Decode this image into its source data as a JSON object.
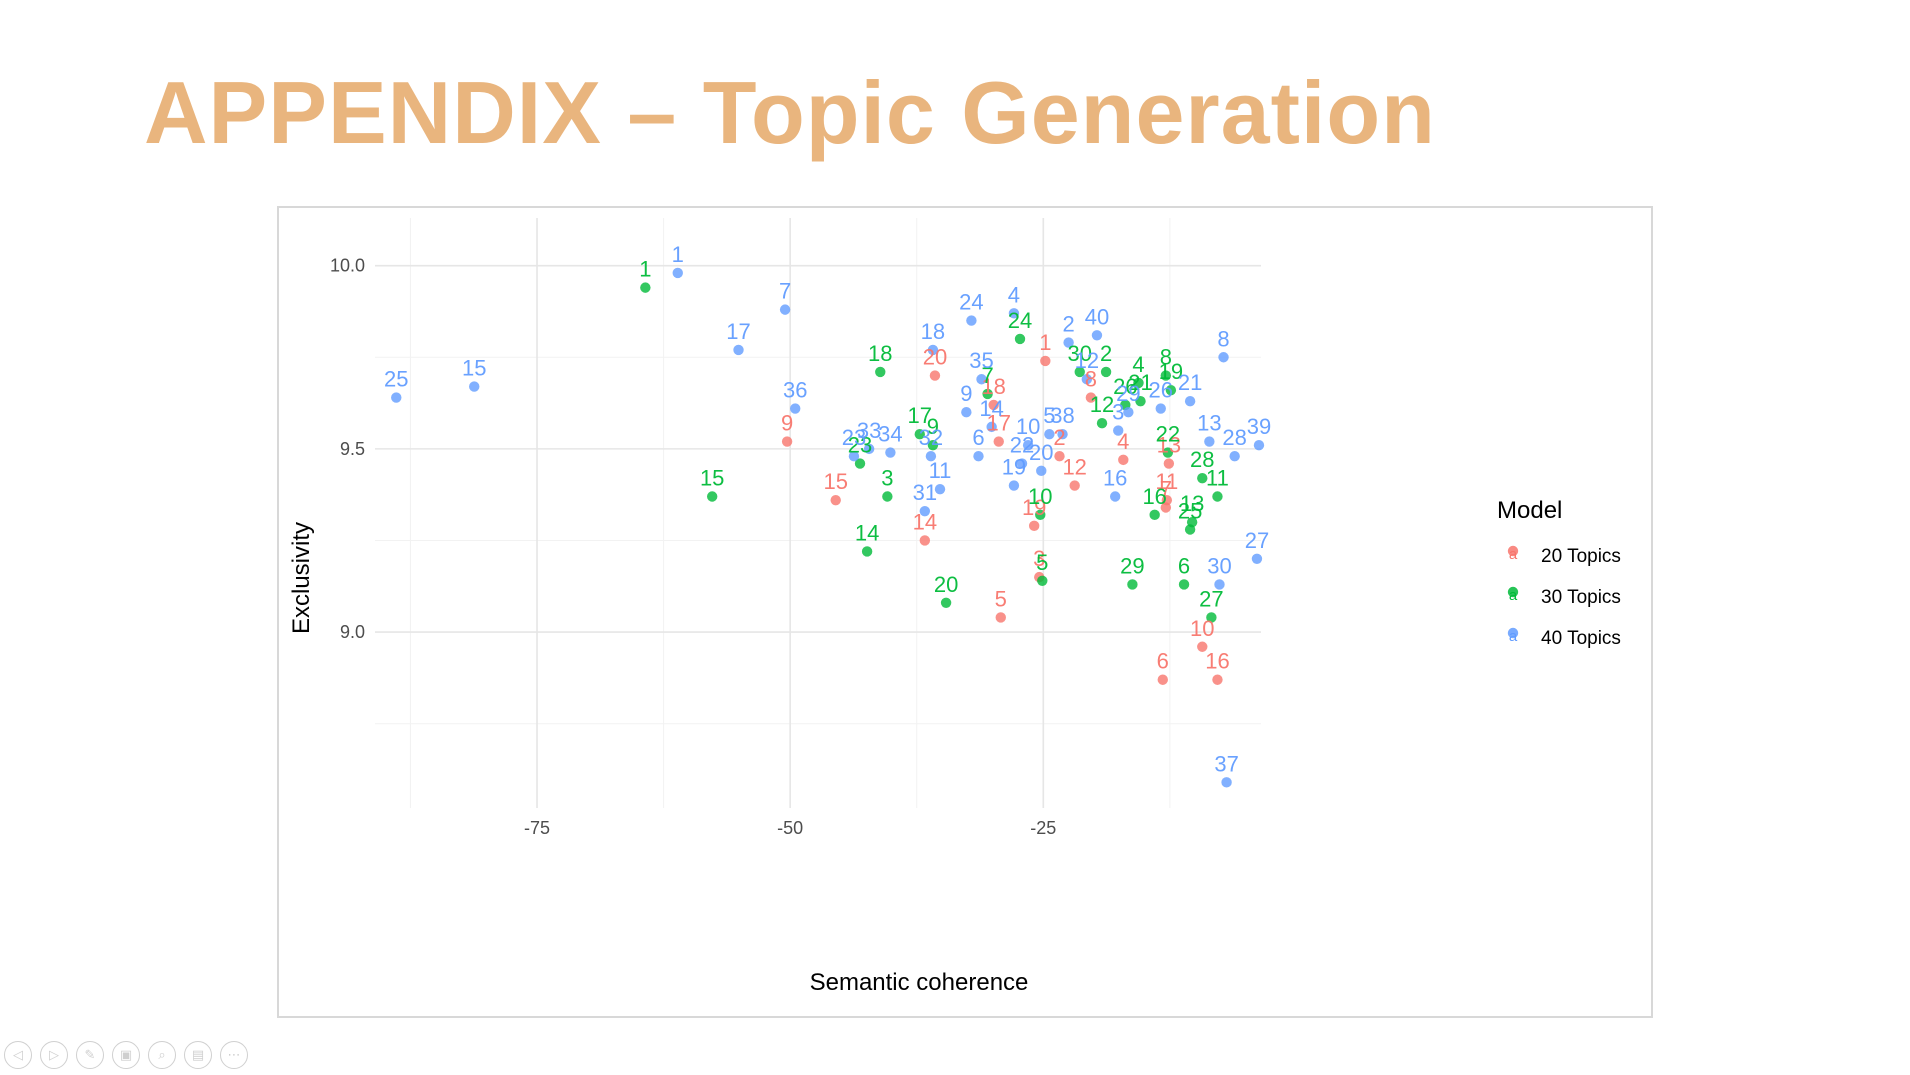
{
  "slide": {
    "title": "APPENDIX – Topic Generation",
    "title_color": "#E9B57E"
  },
  "controls": [
    {
      "name": "previous-slide-icon",
      "glyph": "◁"
    },
    {
      "name": "next-slide-icon",
      "glyph": "▷"
    },
    {
      "name": "pen-icon",
      "glyph": "✎"
    },
    {
      "name": "slides-grid-icon",
      "glyph": "▣"
    },
    {
      "name": "zoom-icon",
      "glyph": "⌕"
    },
    {
      "name": "subtitles-icon",
      "glyph": "▤"
    },
    {
      "name": "more-options-icon",
      "glyph": "⋯"
    }
  ],
  "chart_data": {
    "type": "scatter",
    "title": "",
    "xlabel": "Semantic coherence",
    "ylabel": "Exclusivity",
    "xlim": [
      -91,
      -3.5
    ],
    "ylim": [
      8.52,
      10.13
    ],
    "x_ticks": [
      -75,
      -50,
      -25
    ],
    "x_tick_labels": [
      "-75",
      "-50",
      "-25"
    ],
    "y_ticks": [
      9.0,
      9.5,
      10.0
    ],
    "y_tick_labels": [
      "9.0",
      "9.5",
      "10.0"
    ],
    "grid": true,
    "legend": {
      "title": "Model",
      "position": "right",
      "glyph": "a"
    },
    "series": [
      {
        "name": "20 Topics",
        "color": "#F8766D",
        "points": [
          {
            "x": -24.8,
            "y": 9.74,
            "label": "1"
          },
          {
            "x": -23.4,
            "y": 9.48,
            "label": "2"
          },
          {
            "x": -25.4,
            "y": 9.15,
            "label": "3"
          },
          {
            "x": -17.1,
            "y": 9.47,
            "label": "4"
          },
          {
            "x": -29.2,
            "y": 9.04,
            "label": "5"
          },
          {
            "x": -13.2,
            "y": 8.87,
            "label": "6"
          },
          {
            "x": -12.9,
            "y": 9.34,
            "label": "7"
          },
          {
            "x": -20.3,
            "y": 9.64,
            "label": "8"
          },
          {
            "x": -50.3,
            "y": 9.52,
            "label": "9"
          },
          {
            "x": -9.3,
            "y": 8.96,
            "label": "10"
          },
          {
            "x": -12.8,
            "y": 9.36,
            "label": "11"
          },
          {
            "x": -21.9,
            "y": 9.4,
            "label": "12"
          },
          {
            "x": -12.6,
            "y": 9.46,
            "label": "13"
          },
          {
            "x": -36.7,
            "y": 9.25,
            "label": "14"
          },
          {
            "x": -45.5,
            "y": 9.36,
            "label": "15"
          },
          {
            "x": -7.8,
            "y": 8.87,
            "label": "16"
          },
          {
            "x": -29.4,
            "y": 9.52,
            "label": "17"
          },
          {
            "x": -29.9,
            "y": 9.62,
            "label": "18"
          },
          {
            "x": -25.9,
            "y": 9.29,
            "label": "19"
          },
          {
            "x": -35.7,
            "y": 9.7,
            "label": "20"
          }
        ]
      },
      {
        "name": "30 Topics",
        "color": "#00BA38",
        "points": [
          {
            "x": -64.3,
            "y": 9.94,
            "label": "1"
          },
          {
            "x": -18.8,
            "y": 9.71,
            "label": "2"
          },
          {
            "x": -40.4,
            "y": 9.37,
            "label": "3"
          },
          {
            "x": -15.6,
            "y": 9.68,
            "label": "4"
          },
          {
            "x": -25.1,
            "y": 9.14,
            "label": "5"
          },
          {
            "x": -11.1,
            "y": 9.13,
            "label": "6"
          },
          {
            "x": -30.5,
            "y": 9.65,
            "label": "7"
          },
          {
            "x": -12.9,
            "y": 9.7,
            "label": "8"
          },
          {
            "x": -35.9,
            "y": 9.51,
            "label": "9"
          },
          {
            "x": -25.3,
            "y": 9.32,
            "label": "10"
          },
          {
            "x": -7.8,
            "y": 9.37,
            "label": "11"
          },
          {
            "x": -19.2,
            "y": 9.57,
            "label": "12"
          },
          {
            "x": -10.3,
            "y": 9.3,
            "label": "13"
          },
          {
            "x": -42.4,
            "y": 9.22,
            "label": "14"
          },
          {
            "x": -57.7,
            "y": 9.37,
            "label": "15"
          },
          {
            "x": -14.0,
            "y": 9.32,
            "label": "16"
          },
          {
            "x": -37.2,
            "y": 9.54,
            "label": "17"
          },
          {
            "x": -41.1,
            "y": 9.71,
            "label": "18"
          },
          {
            "x": -12.4,
            "y": 9.66,
            "label": "19"
          },
          {
            "x": -34.6,
            "y": 9.08,
            "label": "20"
          },
          {
            "x": -15.4,
            "y": 9.63,
            "label": "21"
          },
          {
            "x": -12.7,
            "y": 9.49,
            "label": "22"
          },
          {
            "x": -43.1,
            "y": 9.46,
            "label": "23"
          },
          {
            "x": -27.3,
            "y": 9.8,
            "label": "24"
          },
          {
            "x": -10.5,
            "y": 9.28,
            "label": "25"
          },
          {
            "x": -16.9,
            "y": 9.62,
            "label": "26"
          },
          {
            "x": -8.4,
            "y": 9.04,
            "label": "27"
          },
          {
            "x": -9.3,
            "y": 9.42,
            "label": "28"
          },
          {
            "x": -16.2,
            "y": 9.13,
            "label": "29"
          },
          {
            "x": -21.4,
            "y": 9.71,
            "label": "30"
          }
        ]
      },
      {
        "name": "40 Topics",
        "color": "#619CFF",
        "points": [
          {
            "x": -61.1,
            "y": 9.98,
            "label": "1"
          },
          {
            "x": -22.5,
            "y": 9.79,
            "label": "2"
          },
          {
            "x": -17.6,
            "y": 9.55,
            "label": "3"
          },
          {
            "x": -27.9,
            "y": 9.87,
            "label": "4"
          },
          {
            "x": -24.4,
            "y": 9.54,
            "label": "5"
          },
          {
            "x": -31.4,
            "y": 9.48,
            "label": "6"
          },
          {
            "x": -50.5,
            "y": 9.88,
            "label": "7"
          },
          {
            "x": -7.2,
            "y": 9.75,
            "label": "8"
          },
          {
            "x": -32.6,
            "y": 9.6,
            "label": "9"
          },
          {
            "x": -26.5,
            "y": 9.51,
            "label": "10"
          },
          {
            "x": -35.2,
            "y": 9.39,
            "label": "11"
          },
          {
            "x": -20.7,
            "y": 9.69,
            "label": "12"
          },
          {
            "x": -8.6,
            "y": 9.52,
            "label": "13"
          },
          {
            "x": -30.1,
            "y": 9.56,
            "label": "14"
          },
          {
            "x": -81.2,
            "y": 9.67,
            "label": "15"
          },
          {
            "x": -17.9,
            "y": 9.37,
            "label": "16"
          },
          {
            "x": -55.1,
            "y": 9.77,
            "label": "17"
          },
          {
            "x": -35.9,
            "y": 9.77,
            "label": "18"
          },
          {
            "x": -27.9,
            "y": 9.4,
            "label": "19"
          },
          {
            "x": -25.2,
            "y": 9.44,
            "label": "20"
          },
          {
            "x": -10.5,
            "y": 9.63,
            "label": "21"
          },
          {
            "x": -27.1,
            "y": 9.46,
            "label": "22"
          },
          {
            "x": -43.7,
            "y": 9.48,
            "label": "23"
          },
          {
            "x": -32.1,
            "y": 9.85,
            "label": "24"
          },
          {
            "x": -88.9,
            "y": 9.64,
            "label": "25"
          },
          {
            "x": -13.4,
            "y": 9.61,
            "label": "26"
          },
          {
            "x": -3.9,
            "y": 9.2,
            "label": "27"
          },
          {
            "x": -6.1,
            "y": 9.48,
            "label": "28"
          },
          {
            "x": -16.6,
            "y": 9.6,
            "label": "29"
          },
          {
            "x": -7.6,
            "y": 9.13,
            "label": "30"
          },
          {
            "x": -36.7,
            "y": 9.33,
            "label": "31"
          },
          {
            "x": -36.1,
            "y": 9.48,
            "label": "32"
          },
          {
            "x": -42.2,
            "y": 9.5,
            "label": "33"
          },
          {
            "x": -40.1,
            "y": 9.49,
            "label": "34"
          },
          {
            "x": -31.1,
            "y": 9.69,
            "label": "35"
          },
          {
            "x": -49.5,
            "y": 9.61,
            "label": "36"
          },
          {
            "x": -6.9,
            "y": 8.59,
            "label": "37"
          },
          {
            "x": -23.1,
            "y": 9.54,
            "label": "38"
          },
          {
            "x": -3.7,
            "y": 9.51,
            "label": "39"
          },
          {
            "x": -19.7,
            "y": 9.81,
            "label": "40"
          }
        ]
      }
    ]
  }
}
